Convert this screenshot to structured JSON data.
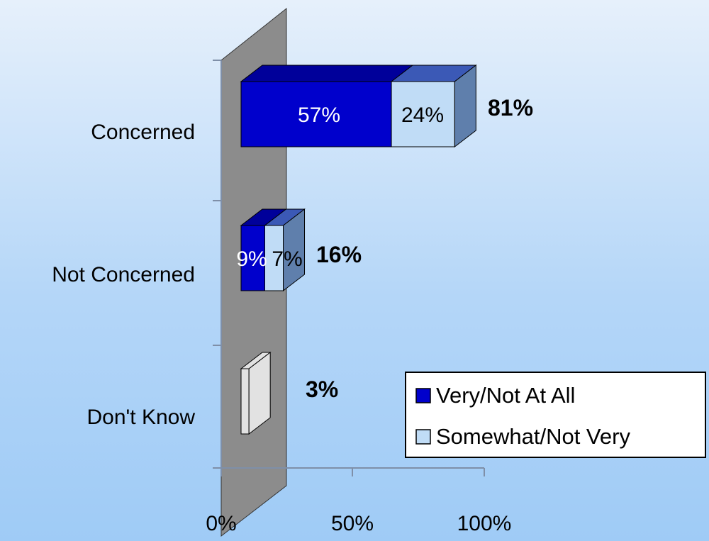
{
  "chart_data": {
    "type": "bar",
    "orientation": "horizontal",
    "stacked": true,
    "categories": [
      "Concerned",
      "Not Concerned",
      "Don't Know"
    ],
    "series": [
      {
        "name": "Very/Not At All",
        "values": [
          57,
          9,
          0
        ],
        "labels": [
          "57%",
          "9%",
          ""
        ]
      },
      {
        "name": "Somewhat/Not Very",
        "values": [
          24,
          7,
          3
        ],
        "labels": [
          "24%",
          "7%",
          ""
        ]
      }
    ],
    "totals": [
      {
        "value": 81,
        "label": "81%"
      },
      {
        "value": 16,
        "label": "16%"
      },
      {
        "value": 3,
        "label": "3%"
      }
    ],
    "x_ticks": [
      "0%",
      "50%",
      "100%"
    ],
    "xlim": [
      0,
      100
    ],
    "grid": false,
    "legend_position": "bottom-right",
    "colors": {
      "series_1_front": "#0000cc",
      "series_1_top": "#00009a",
      "series_2_front": "#c0dcf6",
      "series_2_top": "#3b59b6",
      "series_2_side": "#5f7fac",
      "dontknow_front": "#e2e2e2",
      "wall": "#8c8c8c"
    }
  }
}
